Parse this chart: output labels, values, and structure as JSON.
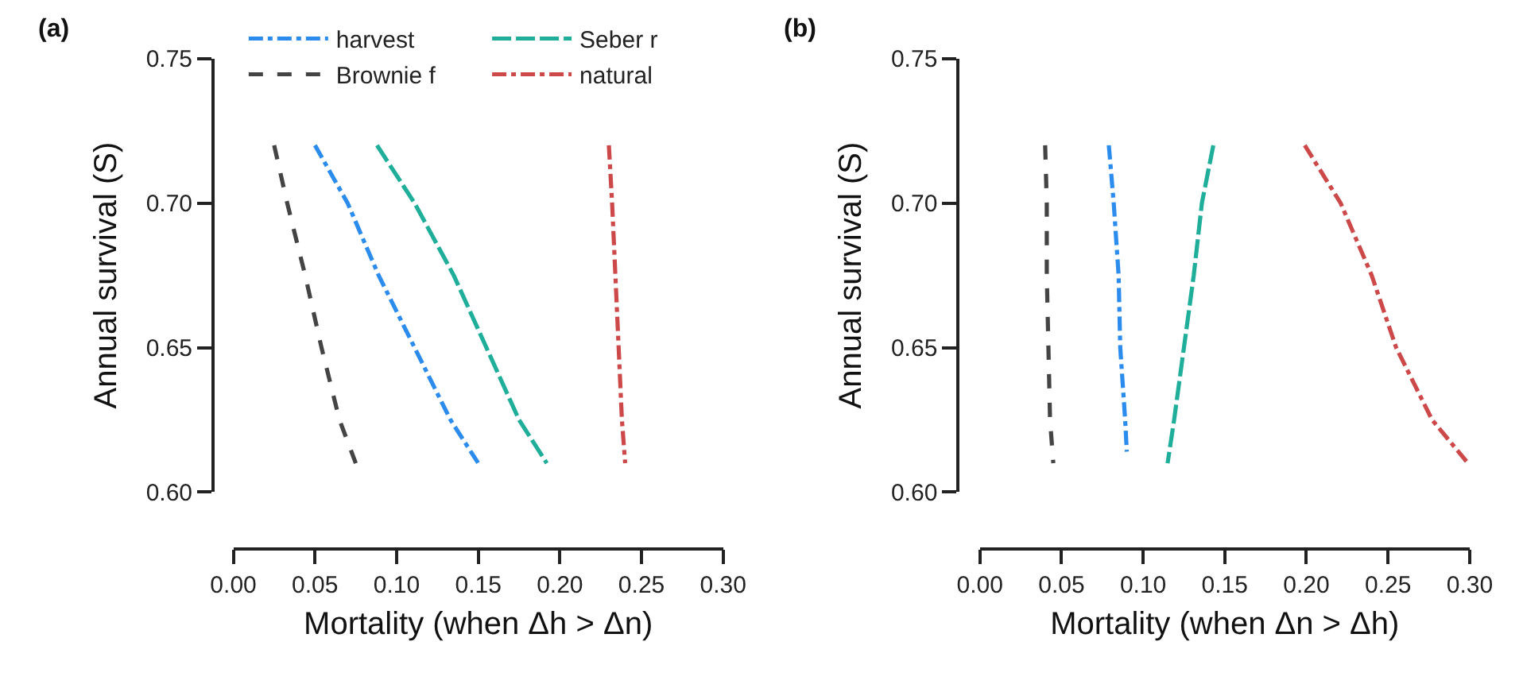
{
  "chart_data": [
    {
      "type": "line",
      "title": "(a)",
      "xlabel": "Mortality (when Δh > Δn)",
      "ylabel": "Annual survival (S)",
      "xlim": [
        0,
        0.3
      ],
      "xticks": [
        {
          "value": 0,
          "label": "0.00"
        },
        {
          "value": 0.05,
          "label": "0.05"
        },
        {
          "value": 0.1,
          "label": "0.10"
        },
        {
          "value": 0.15,
          "label": "0.15"
        },
        {
          "value": 0.2,
          "label": "0.20"
        },
        {
          "value": 0.25,
          "label": "0.25"
        },
        {
          "value": 0.3,
          "label": "0.30"
        }
      ],
      "ylim": [
        0.6,
        0.75
      ],
      "yticks": [
        {
          "value": 0.6,
          "label": "0.60"
        },
        {
          "value": 0.65,
          "label": "0.65"
        },
        {
          "value": 0.7,
          "label": "0.70"
        },
        {
          "value": 0.75,
          "label": "0.75"
        }
      ],
      "legend": "top",
      "series": [
        {
          "name": "harvest",
          "color": "#2b8cee",
          "line_style": "dashdot",
          "x": [
            0.05,
            0.07,
            0.089,
            0.111,
            0.133,
            0.15
          ],
          "values": [
            0.72,
            0.7,
            0.675,
            0.65,
            0.625,
            0.61
          ]
        },
        {
          "name": "Brownie f",
          "color": "#444444",
          "line_style": "dashed",
          "x": [
            0.025,
            0.033,
            0.044,
            0.054,
            0.065,
            0.075
          ],
          "values": [
            0.72,
            0.7,
            0.675,
            0.65,
            0.625,
            0.61
          ]
        },
        {
          "name": "Seber r",
          "color": "#1fae9a",
          "line_style": "longdash",
          "x": [
            0.088,
            0.111,
            0.135,
            0.155,
            0.175,
            0.192
          ],
          "values": [
            0.72,
            0.7,
            0.675,
            0.65,
            0.625,
            0.61
          ]
        },
        {
          "name": "natural",
          "color": "#cd4848",
          "line_style": "dashdot",
          "x": [
            0.23,
            0.232,
            0.234,
            0.236,
            0.238,
            0.24
          ],
          "values": [
            0.72,
            0.7,
            0.675,
            0.65,
            0.625,
            0.61
          ]
        }
      ]
    },
    {
      "type": "line",
      "title": "(b)",
      "xlabel": "Mortality (when Δn > Δh)",
      "ylabel": "Annual survival (S)",
      "xlim": [
        0,
        0.3
      ],
      "xticks": [
        {
          "value": 0,
          "label": "0.00"
        },
        {
          "value": 0.05,
          "label": "0.05"
        },
        {
          "value": 0.1,
          "label": "0.10"
        },
        {
          "value": 0.15,
          "label": "0.15"
        },
        {
          "value": 0.2,
          "label": "0.20"
        },
        {
          "value": 0.25,
          "label": "0.25"
        },
        {
          "value": 0.3,
          "label": "0.30"
        }
      ],
      "ylim": [
        0.6,
        0.75
      ],
      "yticks": [
        {
          "value": 0.6,
          "label": "0.60"
        },
        {
          "value": 0.65,
          "label": "0.65"
        },
        {
          "value": 0.7,
          "label": "0.70"
        },
        {
          "value": 0.75,
          "label": "0.75"
        }
      ],
      "series": [
        {
          "color": "#2b8cee",
          "line_style": "dashdot",
          "x": [
            0.079,
            0.082,
            0.085,
            0.086,
            0.089,
            0.09
          ],
          "values": [
            0.72,
            0.7,
            0.675,
            0.65,
            0.625,
            0.614
          ]
        },
        {
          "color": "#444444",
          "line_style": "dashed",
          "x": [
            0.04,
            0.041,
            0.041,
            0.042,
            0.043,
            0.045
          ],
          "values": [
            0.72,
            0.7,
            0.675,
            0.65,
            0.625,
            0.61
          ]
        },
        {
          "color": "#1fae9a",
          "line_style": "longdash",
          "x": [
            0.143,
            0.136,
            0.131,
            0.125,
            0.119,
            0.115
          ],
          "values": [
            0.72,
            0.7,
            0.675,
            0.65,
            0.625,
            0.61
          ]
        },
        {
          "color": "#cd4848",
          "line_style": "dashdot",
          "x": [
            0.199,
            0.221,
            0.24,
            0.255,
            0.277,
            0.299
          ],
          "values": [
            0.72,
            0.7,
            0.675,
            0.65,
            0.625,
            0.61
          ]
        }
      ]
    }
  ]
}
